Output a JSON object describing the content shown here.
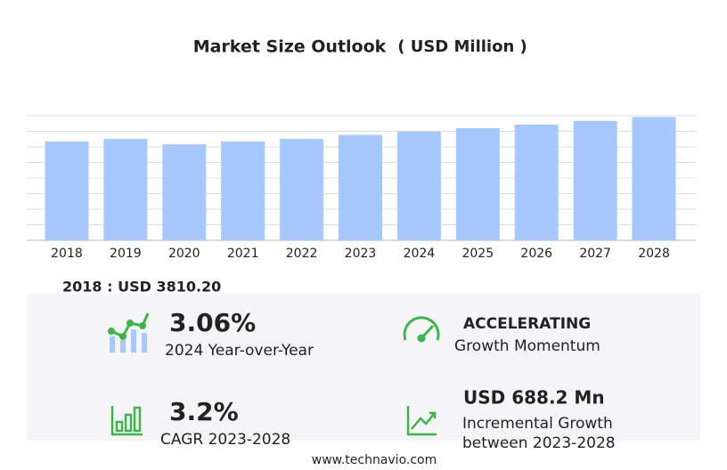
{
  "chart_data": {
    "type": "bar",
    "title": "Market Size Outlook",
    "unit_label": "( USD Million )",
    "categories": [
      "2018",
      "2019",
      "2020",
      "2021",
      "2022",
      "2023",
      "2024",
      "2025",
      "2026",
      "2027",
      "2028"
    ],
    "values": [
      3810.2,
      3910,
      3700,
      3810,
      3910,
      4060,
      4184,
      4320,
      4460,
      4600,
      4748
    ],
    "color": "#a6c8ff",
    "ylim": [
      0,
      4800
    ],
    "yticks": [
      0,
      600,
      1200,
      1800,
      2400,
      3000,
      3600,
      4200,
      4800
    ],
    "grid": true
  },
  "summary": {
    "base_year": "2018 : USD  3810.20",
    "yoy": {
      "value": "3.06%",
      "label": "2024 Year-over-Year"
    },
    "momentum": {
      "value": "ACCELERATING",
      "label": "Growth Momentum"
    },
    "cagr": {
      "value": "3.2%",
      "label": "CAGR 2023-2028"
    },
    "incremental": {
      "value": "USD 688.2 Mn",
      "label_1": "Incremental Growth",
      "label_2": "between 2023-2028"
    }
  },
  "footer": "www.technavio.com"
}
